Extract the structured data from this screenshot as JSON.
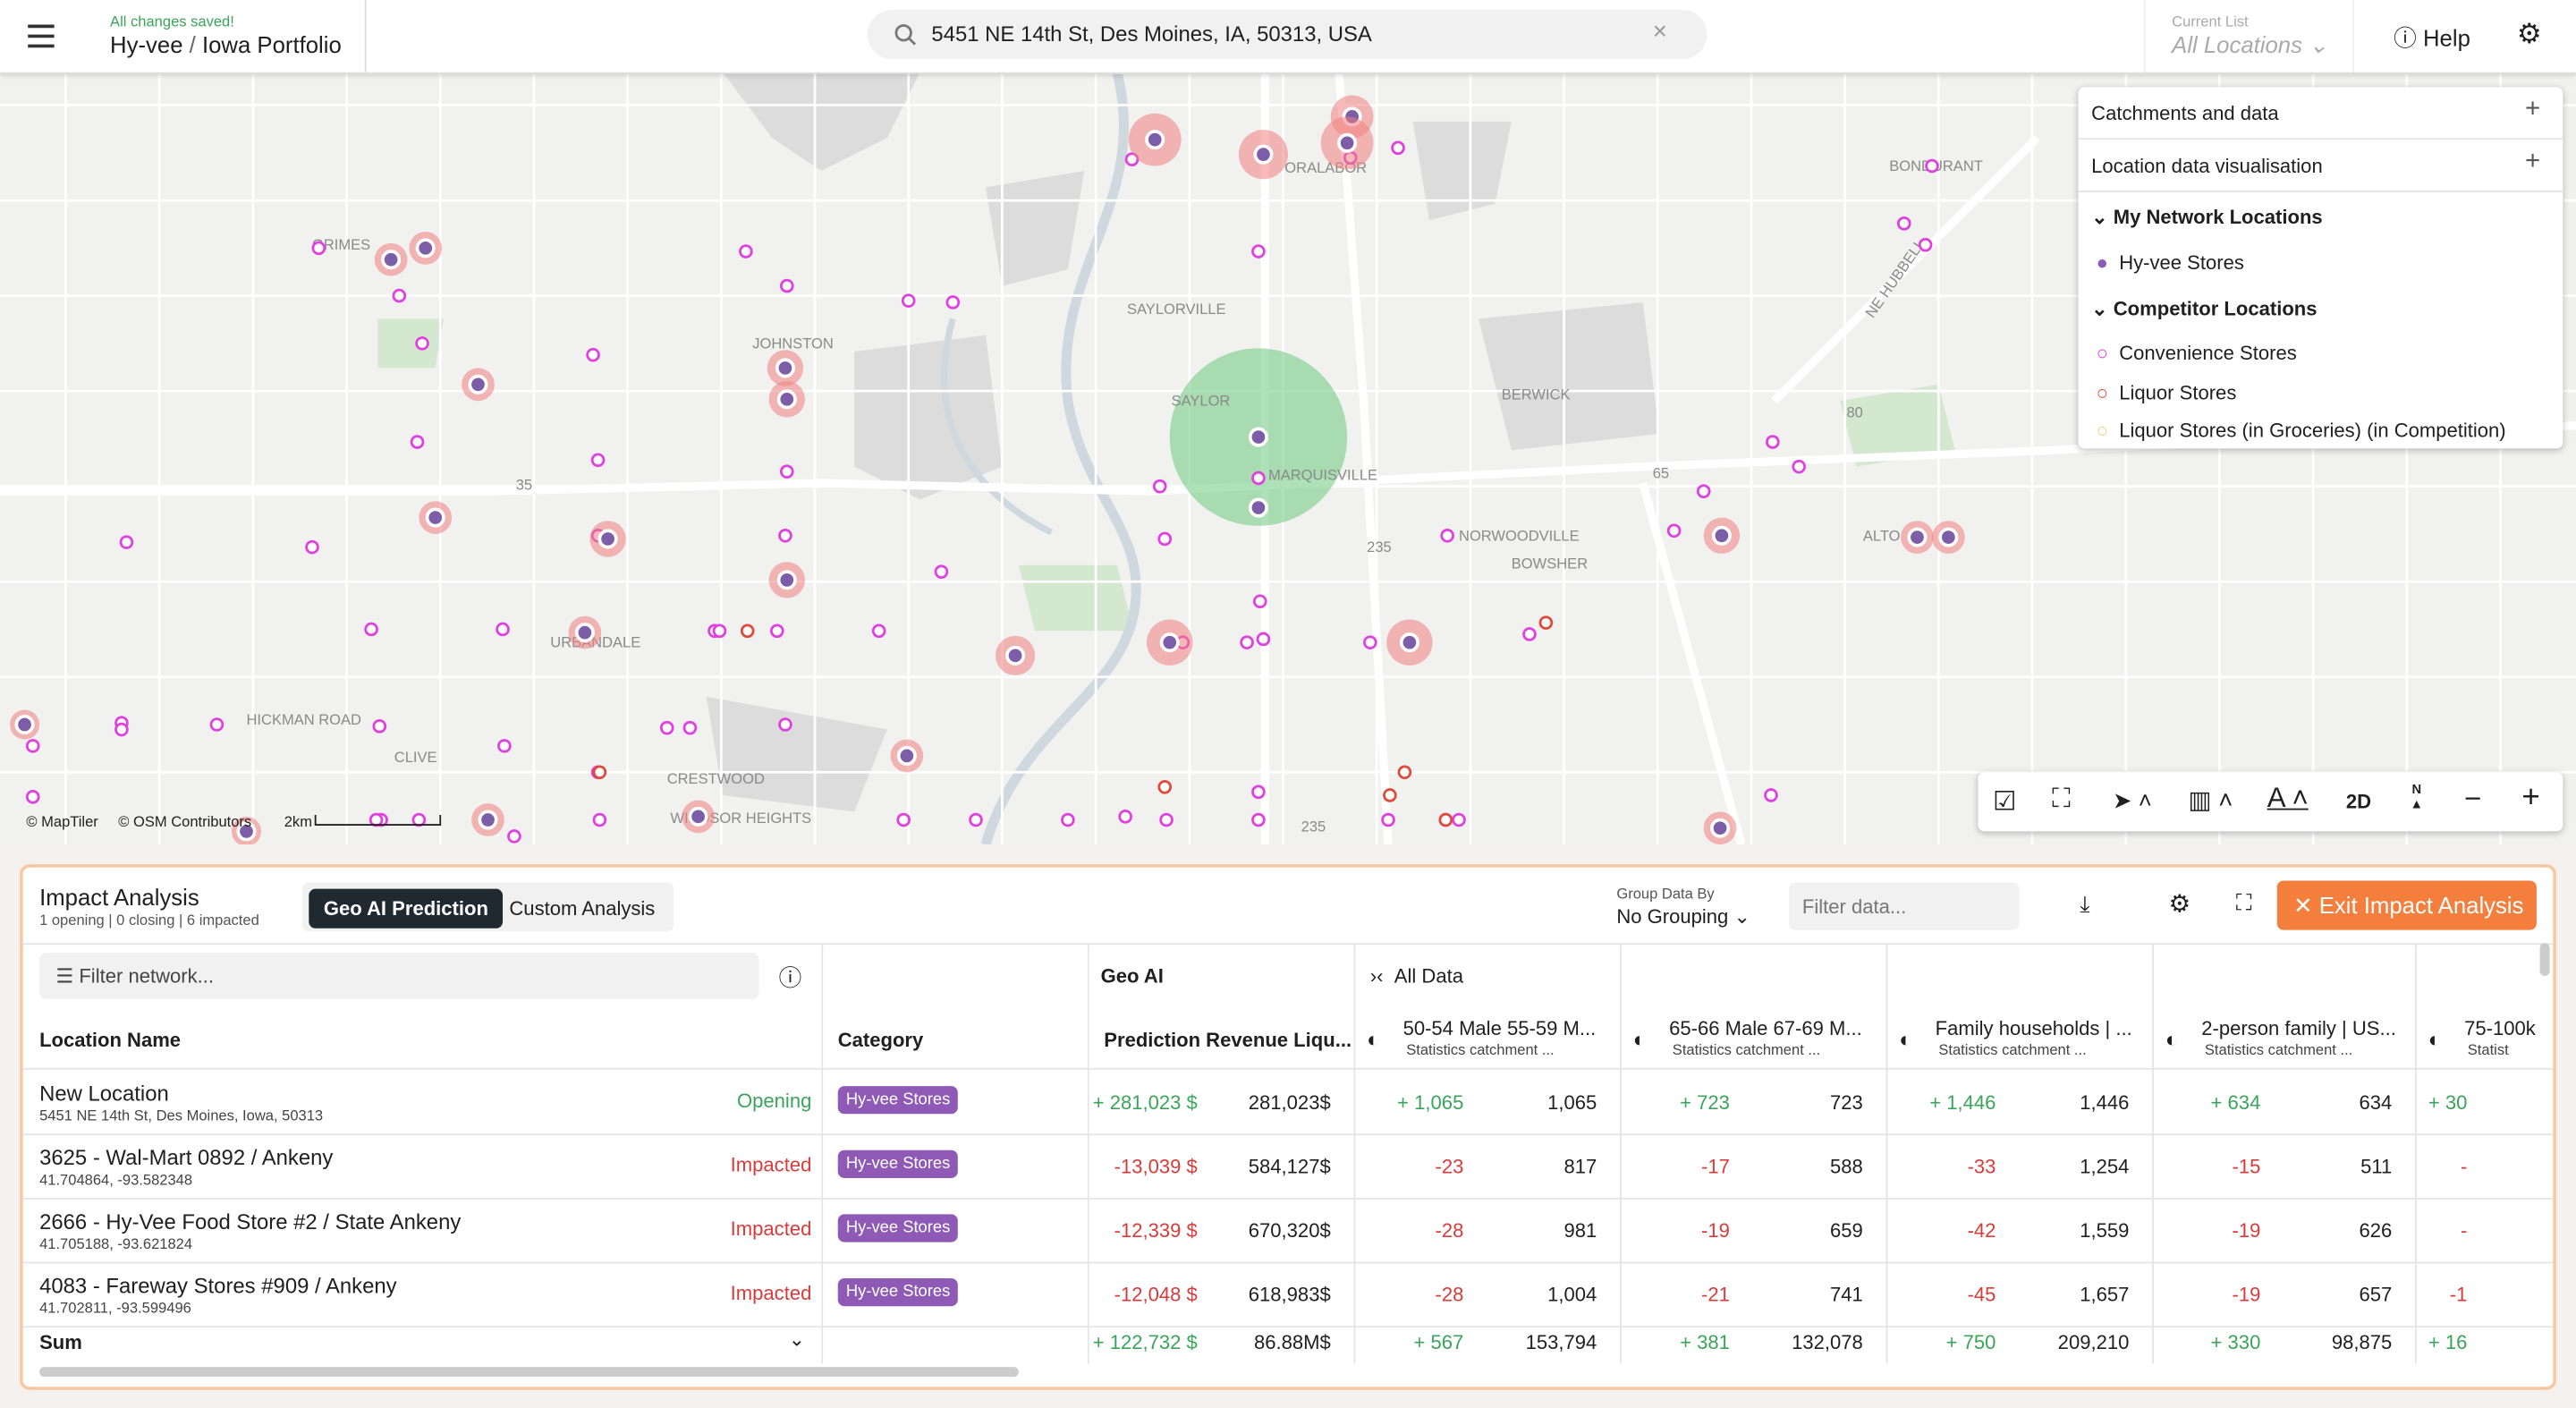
{
  "header": {
    "saved": "All changes saved!",
    "project": "Hy-vee",
    "separator": "/",
    "portfolio": "Iowa Portfolio",
    "search": "5451 NE 14th St, Des Moines, IA, 50313, USA",
    "list_label": "Current List",
    "list_value": "All Locations",
    "help": "Help"
  },
  "map": {
    "labels": [
      "GRIMES",
      "JOHNSTON",
      "SAYLORVILLE",
      "SAYLOR",
      "MARQUISVILLE",
      "BERWICK",
      "BONDURANT",
      "ORALABOR",
      "NORWOODVILLE",
      "BOWSHER",
      "ALTO",
      "URBANDALE",
      "HICKMAN ROAD",
      "CLIVE",
      "CRESTWOOD",
      "WINDSOR HEIGHTS",
      "35",
      "235",
      "80",
      "65",
      "235",
      "NE HUBBELL"
    ],
    "attribution": [
      "© MapTiler",
      "© OSM Contributors"
    ],
    "scale": "2km",
    "tools": {
      "mode": "2D",
      "north": "N"
    }
  },
  "layers": {
    "catchments": "Catchments and data",
    "visualisation": "Location data visualisation",
    "groups": [
      {
        "title": "My Network Locations",
        "items": [
          "Hy-vee Stores"
        ]
      },
      {
        "title": "Competitor Locations",
        "items": [
          "Convenience Stores",
          "Liquor Stores",
          "Liquor Stores (in Groceries) (in Competition)"
        ]
      }
    ]
  },
  "panel": {
    "title": "Impact Analysis",
    "summary": "1 opening | 0 closing | 6 impacted",
    "tabs": [
      "Geo AI Prediction",
      "Custom Analysis"
    ],
    "group_label": "Group Data By",
    "group_value": "No Grouping",
    "filter_data": "Filter data...",
    "exit": "Exit Impact Analysis",
    "filter_network": "Filter network...",
    "group_geo": "Geo AI",
    "group_all": "All Data"
  },
  "table": {
    "columns": [
      {
        "title": "Location Name"
      },
      {
        "title": "Category"
      },
      {
        "title": "Prediction Revenue Liqu..."
      },
      {
        "title": "50-54 Male 55-59 M...",
        "subtitle": "Statistics catchment ..."
      },
      {
        "title": "65-66 Male 67-69 M...",
        "subtitle": "Statistics catchment ..."
      },
      {
        "title": "Family households | ...",
        "subtitle": "Statistics catchment ..."
      },
      {
        "title": "2-person family | US...",
        "subtitle": "Statistics catchment ..."
      },
      {
        "title": "75-100k",
        "subtitle": "Statist"
      }
    ],
    "rows": [
      {
        "name": "New Location",
        "address": "5451 NE 14th St, Des Moines, Iowa, 50313",
        "status": "Opening",
        "category": "Hy-vee Stores",
        "cells": [
          "+ 281,023 $",
          "281,023$",
          "+ 1,065",
          "1,065",
          "+ 723",
          "723",
          "+ 1,446",
          "1,446",
          "+ 634",
          "634",
          "+ 30"
        ]
      },
      {
        "name": "3625 - Wal-Mart 0892 / Ankeny",
        "address": "41.704864, -93.582348",
        "status": "Impacted",
        "category": "Hy-vee Stores",
        "cells": [
          "-13,039 $",
          "584,127$",
          "-23",
          "817",
          "-17",
          "588",
          "-33",
          "1,254",
          "-15",
          "511",
          "-"
        ]
      },
      {
        "name": "2666 - Hy-Vee Food Store #2 / State Ankeny",
        "address": "41.705188, -93.621824",
        "status": "Impacted",
        "category": "Hy-vee Stores",
        "cells": [
          "-12,339 $",
          "670,320$",
          "-28",
          "981",
          "-19",
          "659",
          "-42",
          "1,559",
          "-19",
          "626",
          "-"
        ]
      },
      {
        "name": "4083 - Fareway Stores #909 / Ankeny",
        "address": "41.702811, -93.599496",
        "status": "Impacted",
        "category": "Hy-vee Stores",
        "cells": [
          "-12,048 $",
          "618,983$",
          "-28",
          "1,004",
          "-21",
          "741",
          "-45",
          "1,657",
          "-19",
          "657",
          "-1"
        ]
      }
    ],
    "sum": {
      "label": "Sum",
      "cells": [
        "+ 122,732 $",
        "86.88M$",
        "+ 567",
        "153,794",
        "+ 381",
        "132,078",
        "+ 750",
        "209,210",
        "+ 330",
        "98,875",
        "+ 16"
      ]
    }
  }
}
